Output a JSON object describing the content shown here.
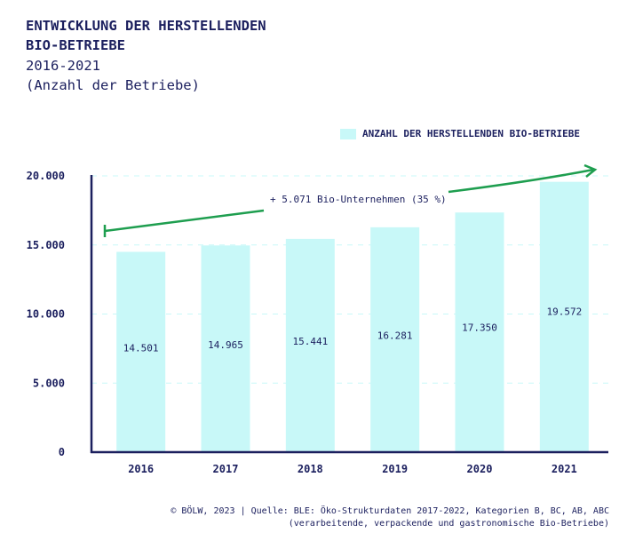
{
  "header": {
    "title_line1": "ENTWICKLUNG DER HERSTELLENDEN",
    "title_line2": "BIO-BETRIEBE",
    "subtitle_line1": "2016-2021",
    "subtitle_line2": "(Anzahl der Betriebe)"
  },
  "legend": {
    "label": "ANZAHL DER HERSTELLENDEN BIO-BETRIEBE"
  },
  "annotation": {
    "text": "+ 5.071 Bio-Unternehmen (35 %)"
  },
  "footer": {
    "line1": "© BÖLW, 2023 | Quelle: BLE: Öko-Strukturdaten 2017-2022, Kategorien B, BC, AB, ABC",
    "line2": "(verarbeitende, verpackende und gastronomische Bio-Betriebe)"
  },
  "colors": {
    "bar": "#c8f8f8",
    "axis": "#1b1f5e",
    "text": "#1b1f5e",
    "arrow": "#1e9e4f",
    "grid": "#c8f8f8"
  },
  "chart_data": {
    "type": "bar",
    "categories": [
      "2016",
      "2017",
      "2018",
      "2019",
      "2020",
      "2021"
    ],
    "series": [
      {
        "name": "ANZAHL DER HERSTELLENDEN BIO-BETRIEBE",
        "values": [
          14501,
          14965,
          15441,
          16281,
          17350,
          19572
        ]
      }
    ],
    "value_labels": [
      "14.501",
      "14.965",
      "15.441",
      "16.281",
      "17.350",
      "19.572"
    ],
    "yticks": [
      0,
      5000,
      10000,
      15000,
      20000
    ],
    "ytick_labels": [
      "0",
      "5.000",
      "10.000",
      "15.000",
      "20.000"
    ],
    "ylim": [
      0,
      20000
    ],
    "grid": true,
    "legend_position": "top-right"
  }
}
